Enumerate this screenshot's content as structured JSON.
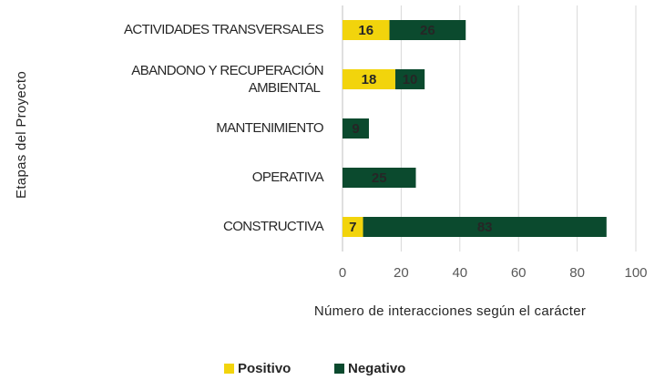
{
  "chart_data": {
    "type": "stacked-bar-horizontal",
    "x_label": "Número de interacciones según el carácter",
    "y_label": "Etapas del Proyecto",
    "categories": [
      "ACTIVIDADES TRANSVERSALES",
      "ABANDONO Y RECUPERACIÓN AMBIENTAL",
      "MANTENIMIENTO",
      "OPERATIVA",
      "CONSTRUCTIVA"
    ],
    "series": [
      {
        "name": "Positivo",
        "color": "#f2d40c",
        "label_color": "#0b4a2e",
        "values": [
          16,
          18,
          null,
          null,
          7
        ]
      },
      {
        "name": "Negativo",
        "color": "#0b4a2e",
        "label_color": "#f2d40c",
        "values": [
          26,
          10,
          9,
          25,
          83
        ]
      }
    ],
    "xlim": [
      0,
      100
    ],
    "xticks": [
      0,
      20,
      40,
      60,
      80,
      100
    ],
    "grid": true,
    "legend": "bottom"
  }
}
